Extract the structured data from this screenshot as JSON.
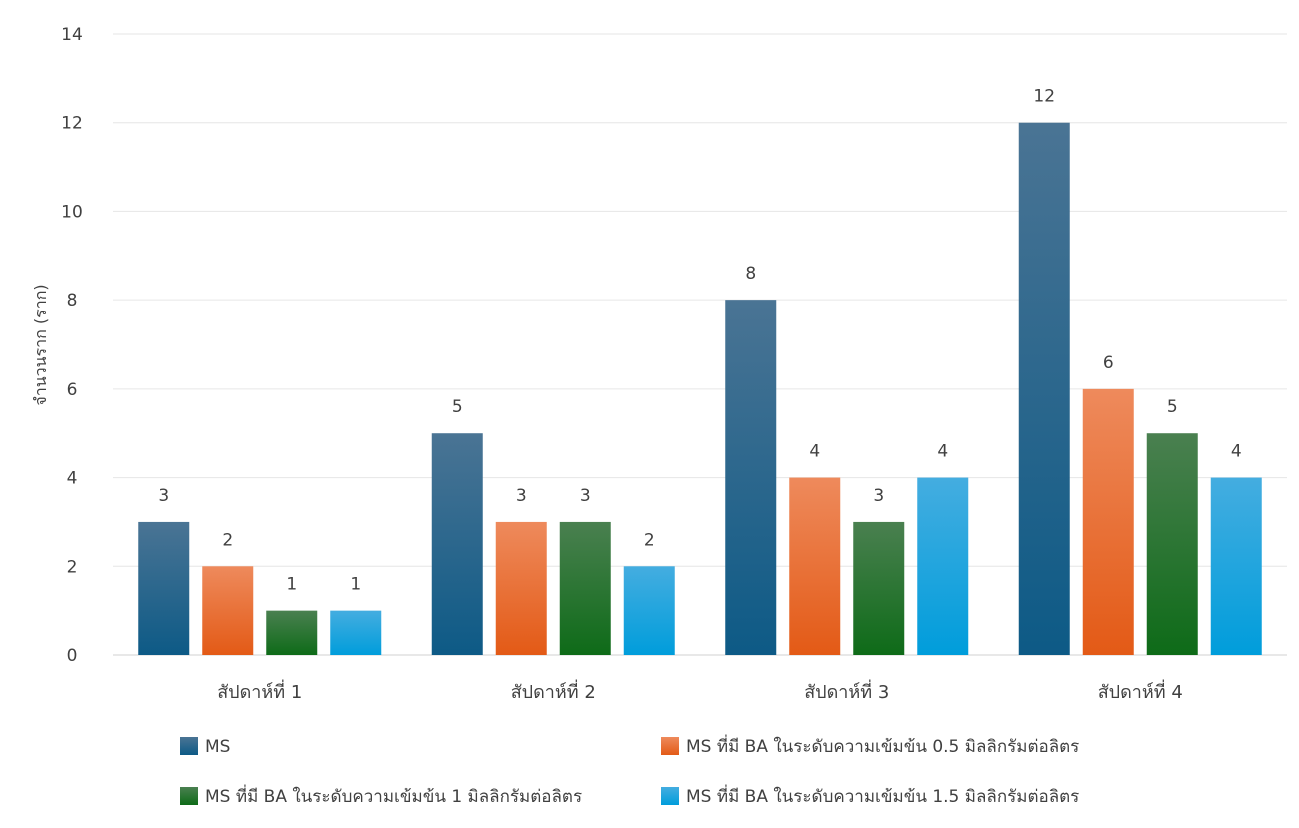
{
  "chart_data": {
    "type": "bar",
    "title": "",
    "xlabel": "",
    "ylabel": "จำนวนราก (ราก)",
    "ylim": [
      0,
      14
    ],
    "yticks": [
      0,
      2,
      4,
      6,
      8,
      10,
      12,
      14
    ],
    "grid": true,
    "legend_position": "bottom",
    "categories": [
      "สัปดาห์ที่ 1",
      "สัปดาห์ที่ 2",
      "สัปดาห์ที่ 3",
      "สัปดาห์ที่ 4"
    ],
    "series": [
      {
        "name": "MS",
        "values": [
          3,
          5,
          8,
          12
        ],
        "color_top": "#4a7494",
        "color_bottom": "#0d5a86"
      },
      {
        "name": "MS ที่มี BA ในระดับความเข้มข้น 0.5 มิลลิกรัมต่อลิตร",
        "values": [
          2,
          3,
          4,
          6
        ],
        "color_top": "#ee8a5c",
        "color_bottom": "#e35a16"
      },
      {
        "name": "MS ที่มี BA ในระดับความเข้มข้น 1 มิลลิกรัมต่อลิตร",
        "values": [
          1,
          3,
          3,
          5
        ],
        "color_top": "#4a8050",
        "color_bottom": "#0e6b18"
      },
      {
        "name": "MS ที่มี BA ในระดับความเข้มข้น 1.5 มิลลิกรัมต่อลิตร",
        "values": [
          1,
          2,
          4,
          4
        ],
        "color_top": "#44ade0",
        "color_bottom": "#009ddb"
      }
    ]
  }
}
